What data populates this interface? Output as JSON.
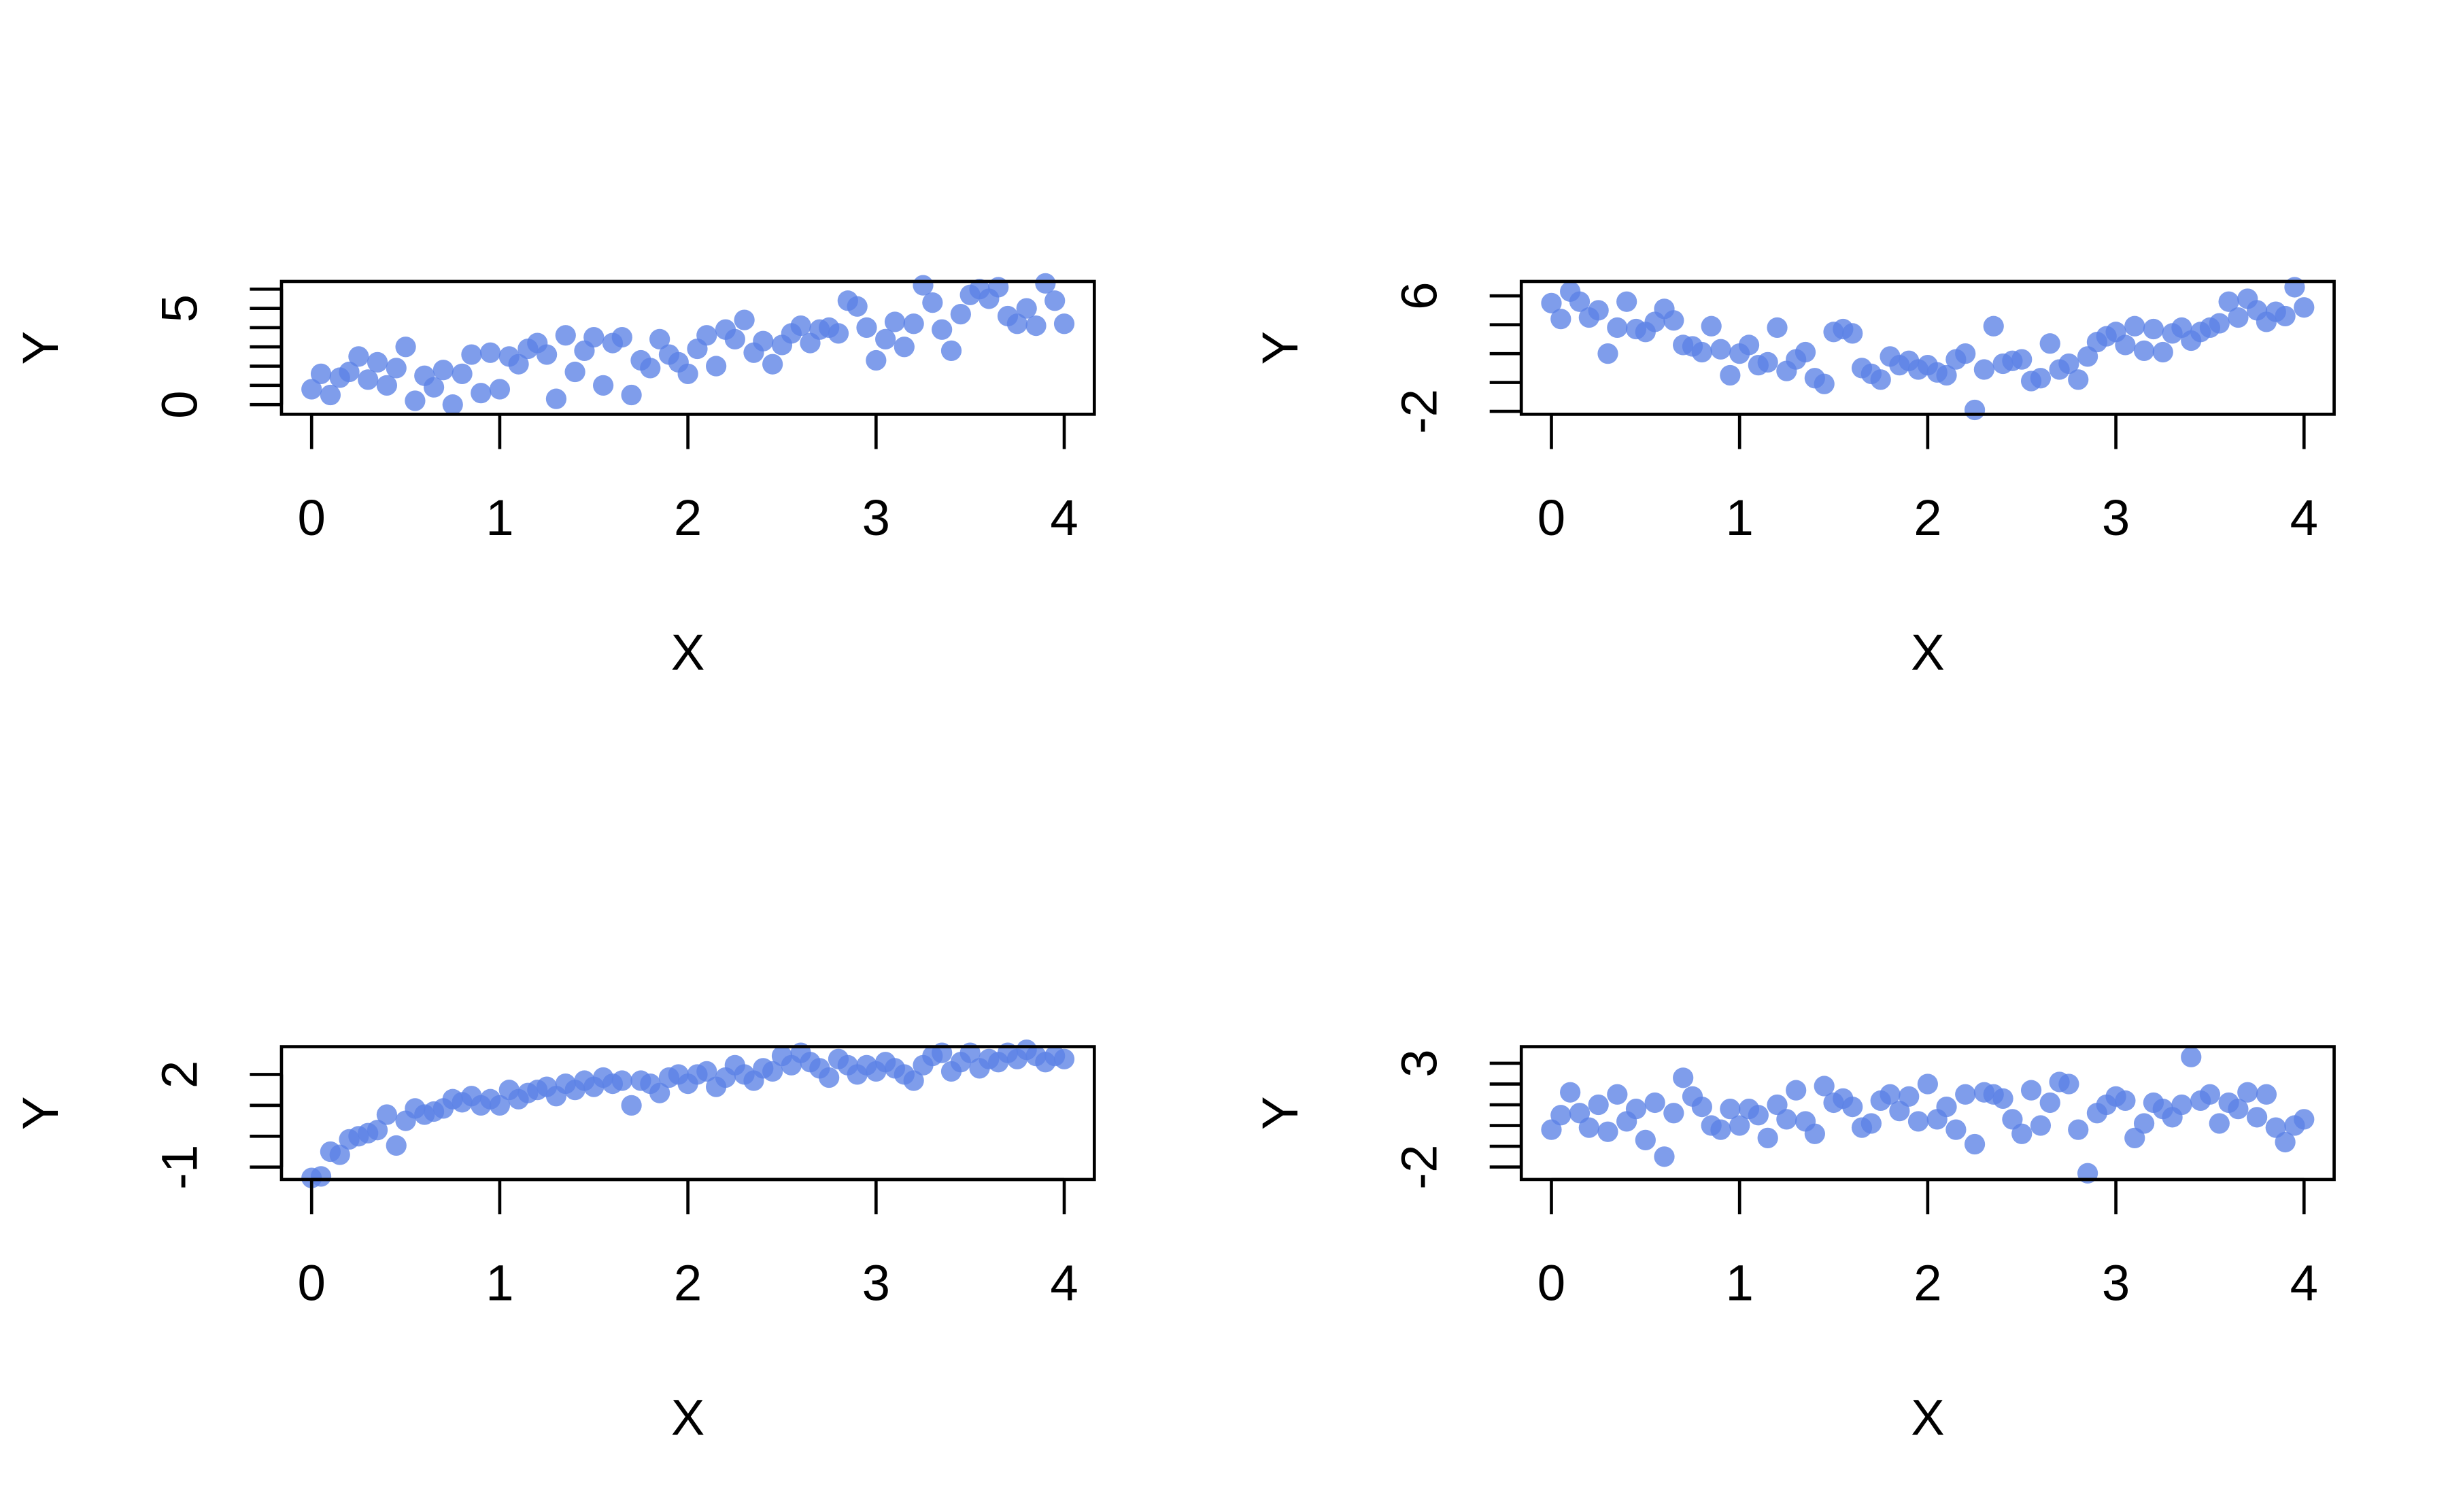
{
  "chart_data": [
    {
      "type": "scatter",
      "xlabel": "X",
      "ylabel": "Y",
      "color": "#5b82e6",
      "x": [
        0,
        0.05,
        0.1,
        0.15,
        0.2,
        0.25,
        0.3,
        0.35,
        0.4,
        0.45,
        0.5,
        0.55,
        0.6,
        0.65,
        0.7,
        0.75,
        0.8,
        0.85,
        0.9,
        0.95,
        1,
        1.05,
        1.1,
        1.15,
        1.2,
        1.25,
        1.3,
        1.35,
        1.4,
        1.45,
        1.5,
        1.55,
        1.6,
        1.65,
        1.7,
        1.75,
        1.8,
        1.85,
        1.9,
        1.95,
        2,
        2.05,
        2.1,
        2.15,
        2.2,
        2.25,
        2.3,
        2.35,
        2.4,
        2.45,
        2.5,
        2.55,
        2.6,
        2.65,
        2.7,
        2.75,
        2.8,
        2.85,
        2.9,
        2.95,
        3,
        3.05,
        3.1,
        3.15,
        3.2,
        3.25,
        3.3,
        3.35,
        3.4,
        3.45,
        3.5,
        3.55,
        3.6,
        3.65,
        3.7,
        3.75,
        3.8,
        3.85,
        3.9,
        3.95,
        4
      ],
      "values": [
        0.8,
        1.6,
        0.5,
        1.4,
        1.7,
        2.5,
        1.3,
        2.2,
        1.0,
        1.9,
        3.0,
        0.2,
        1.5,
        0.9,
        1.8,
        0.0,
        1.6,
        2.6,
        0.6,
        2.7,
        0.8,
        2.5,
        2.1,
        2.9,
        3.2,
        2.6,
        0.3,
        3.6,
        1.7,
        2.8,
        3.5,
        1.0,
        3.2,
        3.5,
        0.5,
        2.3,
        1.9,
        3.4,
        2.6,
        2.2,
        1.6,
        2.9,
        3.6,
        2.0,
        3.9,
        3.4,
        4.4,
        2.7,
        3.3,
        2.1,
        3.1,
        3.7,
        4.1,
        3.2,
        3.9,
        4.0,
        3.7,
        5.4,
        5.1,
        4.0,
        2.3,
        3.4,
        4.3,
        3.0,
        4.2,
        6.2,
        5.3,
        3.9,
        2.8,
        4.7,
        5.7,
        6.0,
        5.5,
        6.1,
        4.6,
        4.2,
        5.0,
        4.1,
        6.3,
        5.4,
        4.2
      ],
      "xlim": [
        -0.16,
        4.16
      ],
      "xticks": [
        0,
        1,
        2,
        3,
        4
      ],
      "ylim": [
        -0.5,
        6.4
      ],
      "yticks": [
        0,
        5
      ],
      "yticks_unlabeled": [
        1,
        2,
        3,
        4,
        6
      ]
    },
    {
      "type": "scatter",
      "xlabel": "X",
      "ylabel": "Y",
      "color": "#5b82e6",
      "x": [
        0,
        0.05,
        0.1,
        0.15,
        0.2,
        0.25,
        0.3,
        0.35,
        0.4,
        0.45,
        0.5,
        0.55,
        0.6,
        0.65,
        0.7,
        0.75,
        0.8,
        0.85,
        0.9,
        0.95,
        1,
        1.05,
        1.1,
        1.15,
        1.2,
        1.25,
        1.3,
        1.35,
        1.4,
        1.45,
        1.5,
        1.55,
        1.6,
        1.65,
        1.7,
        1.75,
        1.8,
        1.85,
        1.9,
        1.95,
        2,
        2.05,
        2.1,
        2.15,
        2.2,
        2.25,
        2.3,
        2.35,
        2.4,
        2.45,
        2.5,
        2.55,
        2.6,
        2.65,
        2.7,
        2.75,
        2.8,
        2.85,
        2.9,
        2.95,
        3,
        3.05,
        3.1,
        3.15,
        3.2,
        3.25,
        3.3,
        3.35,
        3.4,
        3.45,
        3.5,
        3.55,
        3.6,
        3.65,
        3.7,
        3.75,
        3.8,
        3.85,
        3.9,
        3.95,
        4
      ],
      "values": [
        5.5,
        4.4,
        6.3,
        5.6,
        4.5,
        5.0,
        2.0,
        3.8,
        5.6,
        3.7,
        3.5,
        4.2,
        5.1,
        4.3,
        2.6,
        2.5,
        2.1,
        3.9,
        2.3,
        0.5,
        2.0,
        2.6,
        1.2,
        1.4,
        3.8,
        0.8,
        1.6,
        2.1,
        0.3,
        -0.1,
        3.5,
        3.7,
        3.4,
        1.0,
        0.6,
        0.2,
        1.8,
        1.2,
        1.5,
        0.9,
        1.2,
        0.7,
        0.5,
        1.6,
        2.0,
        -1.9,
        0.9,
        3.9,
        1.3,
        1.5,
        1.6,
        0.1,
        0.3,
        2.7,
        0.9,
        1.3,
        0.2,
        1.8,
        2.8,
        3.2,
        3.5,
        2.6,
        3.9,
        2.2,
        3.7,
        2.1,
        3.4,
        3.8,
        2.9,
        3.5,
        3.8,
        4.1,
        5.6,
        4.5,
        5.8,
        5.0,
        4.2,
        4.9,
        4.6,
        6.6,
        5.2
      ],
      "xlim": [
        -0.16,
        4.16
      ],
      "xticks": [
        0,
        1,
        2,
        3,
        4
      ],
      "ylim": [
        -2.2,
        7
      ],
      "yticks": [
        -2,
        6
      ],
      "yticks_unlabeled": [
        0,
        2,
        4
      ]
    },
    {
      "type": "scatter",
      "xlabel": "X",
      "ylabel": "Y",
      "color": "#5b82e6",
      "x": [
        0,
        0.05,
        0.1,
        0.15,
        0.2,
        0.25,
        0.3,
        0.35,
        0.4,
        0.45,
        0.5,
        0.55,
        0.6,
        0.65,
        0.7,
        0.75,
        0.8,
        0.85,
        0.9,
        0.95,
        1,
        1.05,
        1.1,
        1.15,
        1.2,
        1.25,
        1.3,
        1.35,
        1.4,
        1.45,
        1.5,
        1.55,
        1.6,
        1.65,
        1.7,
        1.75,
        1.8,
        1.85,
        1.9,
        1.95,
        2,
        2.05,
        2.1,
        2.15,
        2.2,
        2.25,
        2.3,
        2.35,
        2.4,
        2.45,
        2.5,
        2.55,
        2.6,
        2.65,
        2.7,
        2.75,
        2.8,
        2.85,
        2.9,
        2.95,
        3,
        3.05,
        3.1,
        3.15,
        3.2,
        3.25,
        3.3,
        3.35,
        3.4,
        3.45,
        3.5,
        3.55,
        3.6,
        3.65,
        3.7,
        3.75,
        3.8,
        3.85,
        3.9,
        3.95,
        4
      ],
      "values": [
        -1.35,
        -1.3,
        -0.5,
        -0.6,
        -0.1,
        0.0,
        0.1,
        0.2,
        0.7,
        -0.3,
        0.5,
        0.9,
        0.7,
        0.8,
        0.9,
        1.2,
        1.1,
        1.3,
        1.0,
        1.2,
        1.0,
        1.5,
        1.2,
        1.4,
        1.5,
        1.6,
        1.3,
        1.7,
        1.5,
        1.8,
        1.6,
        1.9,
        1.7,
        1.8,
        1.0,
        1.8,
        1.7,
        1.4,
        1.9,
        2.0,
        1.7,
        2.0,
        2.1,
        1.6,
        1.9,
        2.3,
        2.0,
        1.8,
        2.2,
        2.1,
        2.6,
        2.3,
        2.7,
        2.4,
        2.2,
        1.9,
        2.5,
        2.3,
        2.0,
        2.3,
        2.1,
        2.4,
        2.2,
        2.0,
        1.8,
        2.3,
        2.6,
        2.7,
        2.1,
        2.4,
        2.7,
        2.2,
        2.5,
        2.4,
        2.7,
        2.5,
        2.8,
        2.6,
        2.4,
        2.6,
        2.5
      ],
      "xlim": [
        -0.16,
        4.16
      ],
      "xticks": [
        0,
        1,
        2,
        3,
        4
      ],
      "ylim": [
        -1.4,
        2.9
      ],
      "yticks": [
        -1,
        2
      ],
      "yticks_unlabeled": [
        0,
        1
      ]
    },
    {
      "type": "scatter",
      "xlabel": "X",
      "ylabel": "Y",
      "color": "#5b82e6",
      "x": [
        0,
        0.05,
        0.1,
        0.15,
        0.2,
        0.25,
        0.3,
        0.35,
        0.4,
        0.45,
        0.5,
        0.55,
        0.6,
        0.65,
        0.7,
        0.75,
        0.8,
        0.85,
        0.9,
        0.95,
        1,
        1.05,
        1.1,
        1.15,
        1.2,
        1.25,
        1.3,
        1.35,
        1.4,
        1.45,
        1.5,
        1.55,
        1.6,
        1.65,
        1.7,
        1.75,
        1.8,
        1.85,
        1.9,
        1.95,
        2,
        2.05,
        2.1,
        2.15,
        2.2,
        2.25,
        2.3,
        2.35,
        2.4,
        2.45,
        2.5,
        2.55,
        2.6,
        2.65,
        2.7,
        2.75,
        2.8,
        2.85,
        2.9,
        2.95,
        3,
        3.05,
        3.1,
        3.15,
        3.2,
        3.25,
        3.3,
        3.35,
        3.4,
        3.45,
        3.5,
        3.55,
        3.6,
        3.65,
        3.7,
        3.75,
        3.8,
        3.85,
        3.9,
        3.95,
        4
      ],
      "values": [
        -0.2,
        0.5,
        1.6,
        0.6,
        -0.1,
        1.0,
        -0.3,
        1.5,
        0.2,
        0.8,
        -0.7,
        1.1,
        -1.5,
        0.6,
        2.3,
        1.4,
        0.9,
        0.0,
        -0.2,
        0.8,
        0.0,
        0.8,
        0.5,
        -0.6,
        1.0,
        0.3,
        1.7,
        0.2,
        -0.4,
        1.9,
        1.1,
        1.3,
        0.9,
        -0.1,
        0.1,
        1.2,
        1.5,
        0.7,
        1.4,
        0.2,
        2.0,
        0.3,
        0.9,
        -0.2,
        1.5,
        -0.9,
        1.6,
        1.5,
        1.3,
        0.3,
        -0.4,
        1.7,
        0.0,
        1.1,
        2.1,
        2.0,
        -0.2,
        -2.3,
        0.6,
        1.0,
        1.4,
        1.2,
        -0.6,
        0.1,
        1.1,
        0.8,
        0.4,
        1.0,
        3.3,
        1.2,
        1.5,
        0.1,
        1.1,
        0.8,
        1.6,
        0.4,
        1.5,
        -0.1,
        -0.8,
        0.0,
        0.3
      ],
      "xlim": [
        -0.16,
        4.16
      ],
      "xticks": [
        0,
        1,
        2,
        3,
        4
      ],
      "ylim": [
        -2.6,
        3.8
      ],
      "yticks": [
        -2,
        3
      ],
      "yticks_unlabeled": [
        -1,
        0,
        1,
        2
      ]
    }
  ]
}
